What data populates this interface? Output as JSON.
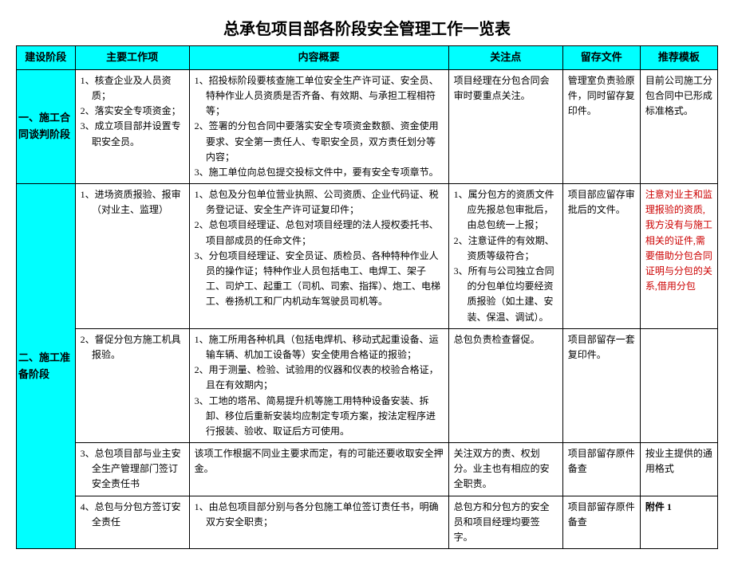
{
  "title": "总承包项目部各阶段安全管理工作一览表",
  "headers": {
    "stage": "建设阶段",
    "work": "主要工作项",
    "content": "内容概要",
    "focus": "关注点",
    "file": "留存文件",
    "template": "推荐模板"
  },
  "stage1": {
    "label": "一、施工合同谈判阶段",
    "row1": {
      "work1": "1、核查企业及人员资质；",
      "work2": "2、落实安全专项资金；",
      "work3": "3、成立项目部并设置专职安全员。",
      "c1": "1、招投标阶段要核查施工单位安全生产许可证、安全员、特种作业人员资质是否齐备、有效期、与承担工程相符等；",
      "c2": "2、签署的分包合同中要落实安全专项资金数额、资金使用要求、安全第一责任人、专职安全员，双方责任划分等内容；",
      "c3": "3、施工单位向总包提交投标文件中，要有安全专项章节。",
      "focus": "项目经理在分包合同会审时要重点关注。",
      "file": "管理室负责验原件，同时留存复印件。",
      "tpl": "目前公司施工分包合同中已形成标准格式。"
    }
  },
  "stage2": {
    "label": "二、施工准备阶段",
    "row1": {
      "work": "1、进场资质报验、报审（对业主、监理）",
      "c1": "1、总包及分包单位营业执照、公司资质、企业代码证、税务登记证、安全生产许可证复印件；",
      "c2": "2、总包项目经理证、总包对项目经理的法人授权委托书、项目部成员的任命文件；",
      "c3": "3、分包项目经理证、安全员证、质检员、各种特种作业人员的操作证；特种作业人员包括电工、电焊工、架子工、司炉工、起重工（司机、司索、指挥）、炮工、电梯工、卷扬机工和厂内机动车驾驶员司机等。",
      "f1": "1、属分包方的资质文件应先报总包审批后，由总包统一上报；",
      "f2": "2、注意证件的有效期、资质等级符合；",
      "f3": "3、所有与公司独立合同的分包单位均要经资质报验（如土建、安装、保温、调试）。",
      "file": "项目部应留存审批后的文件。",
      "tpl": "注意对业主和监理报验的资质,我方没有与施工相关的证件,需要借助分包合同证明与分包的关系,借用分包"
    },
    "row2": {
      "work": "2、督促分包方施工机具报验。",
      "c1": "1、施工所用各种机具（包括电焊机、移动式起重设备、运输车辆、机加工设备等）安全使用合格证的报验；",
      "c2": "2、用于测量、检验、试验用的仪器和仪表的校验合格证，且在有效期内；",
      "c3": "3、工地的塔吊、简易提升机等施工用特种设备安装、拆卸、移位后重新安装均应制定专项方案，按法定程序进行报装、验收、取证后方可使用。",
      "focus": "总包负责检查督促。",
      "file": "项目部留存一套复印件。",
      "tpl": ""
    },
    "row3": {
      "work": "3、总包项目部与业主安全生产管理部门签订安全责任书",
      "content": "该项工作根据不同业主要求而定，有的可能还要收取安全押金。",
      "focus": "关注双方的责、权划分。业主也有相应的安全职责。",
      "file": "项目部留存原件备查",
      "tpl": "按业主提供的通用格式"
    },
    "row4": {
      "work": "4、总包与分包方签订安全责任",
      "c1": "1、由总包项目部分别与各分包施工单位签订责任书，明确双方安全职责；",
      "focus": "总包方和分包方的安全员和项目经理均要签字。",
      "file": "项目部留存原件备查",
      "tpl": "附件 1"
    }
  }
}
